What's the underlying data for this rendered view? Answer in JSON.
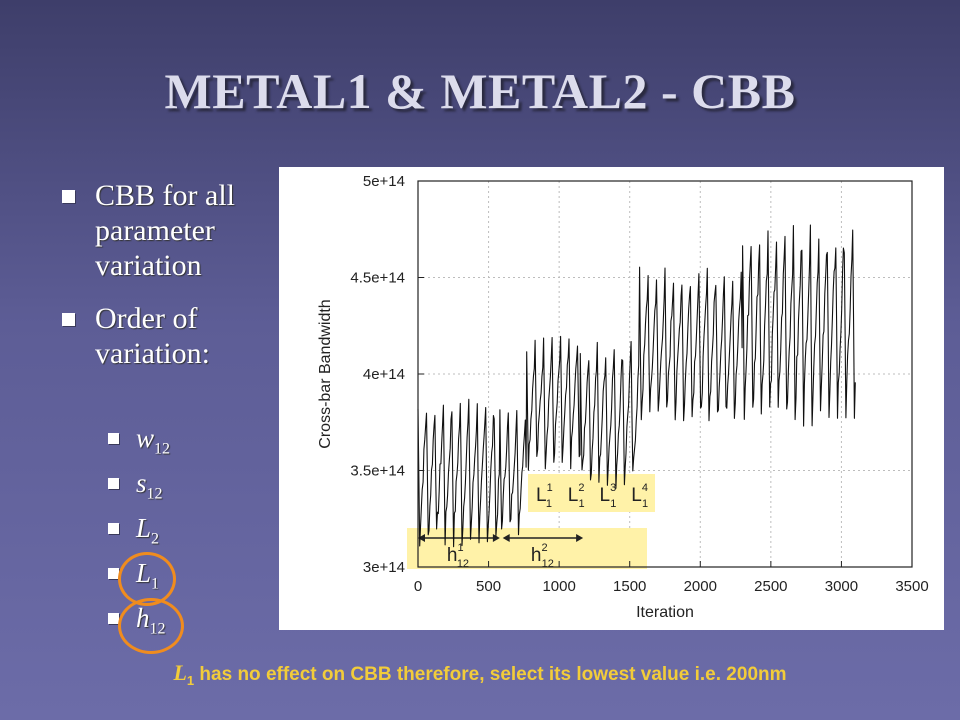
{
  "slide": {
    "title": "METAL1 & METAL2 - CBB",
    "bullets": [
      {
        "text": "CBB for all parameter variation"
      },
      {
        "text": "Order of variation:"
      }
    ],
    "sub_items": [
      {
        "base": "w",
        "sub": "12"
      },
      {
        "base": "s",
        "sub": "12"
      },
      {
        "base": "L",
        "sub": "2"
      },
      {
        "base": "L",
        "sub": "1"
      },
      {
        "base": "h",
        "sub": "12"
      }
    ],
    "footer": {
      "base": "L",
      "sub": "1",
      "text": " has no effect on CBB therefore, select its lowest value i.e. 200nm"
    },
    "highlight_color": "#f08c1e",
    "footer_color": "#f2cc3a"
  },
  "chart_data": {
    "type": "line",
    "xlabel": "Iteration",
    "ylabel": "Cross-bar Bandwidth",
    "xlim": [
      0,
      3500
    ],
    "ylim": [
      300000000000000.0,
      500000000000000.0
    ],
    "x_ticks": [
      0,
      500,
      1000,
      1500,
      2000,
      2500,
      3000,
      3500
    ],
    "y_ticks": [
      {
        "value": 300000000000000.0,
        "label": "3e+14"
      },
      {
        "value": 350000000000000.0,
        "label": "3.5e+14"
      },
      {
        "value": 400000000000000.0,
        "label": "4e+14"
      },
      {
        "value": 450000000000000.0,
        "label": "4.5e+14"
      },
      {
        "value": 500000000000000.0,
        "label": "5e+14"
      }
    ],
    "grid": true,
    "x_range": [
      0,
      3100
    ],
    "phases": [
      {
        "x_start": 0,
        "x_end": 580,
        "low": 315000000000000.0,
        "high": 382000000000000.0
      },
      {
        "x_start": 580,
        "x_end": 770,
        "low": 320000000000000.0,
        "high": 378000000000000.0
      },
      {
        "x_start": 770,
        "x_end": 1150,
        "low": 355000000000000.0,
        "high": 415000000000000.0
      },
      {
        "x_start": 1150,
        "x_end": 1570,
        "low": 345000000000000.0,
        "high": 412000000000000.0
      },
      {
        "x_start": 1570,
        "x_end": 2300,
        "low": 378000000000000.0,
        "high": 450000000000000.0
      },
      {
        "x_start": 2300,
        "x_end": 3100,
        "low": 380000000000000.0,
        "high": 470000000000000.0
      }
    ],
    "annotations": {
      "l_row": [
        {
          "base": "L",
          "sup": "1",
          "sub": "1"
        },
        {
          "base": "L",
          "sup": "2",
          "sub": "1"
        },
        {
          "base": "L",
          "sup": "3",
          "sub": "1"
        },
        {
          "base": "L",
          "sup": "4",
          "sub": "1"
        }
      ],
      "h_row": [
        {
          "base": "h",
          "sup": "1",
          "sub": "12",
          "x_start": 0,
          "x_end": 580
        },
        {
          "base": "h",
          "sup": "2",
          "sub": "12",
          "x_start": 600,
          "x_end": 1170
        }
      ],
      "box_color": "#fff2a8"
    }
  }
}
